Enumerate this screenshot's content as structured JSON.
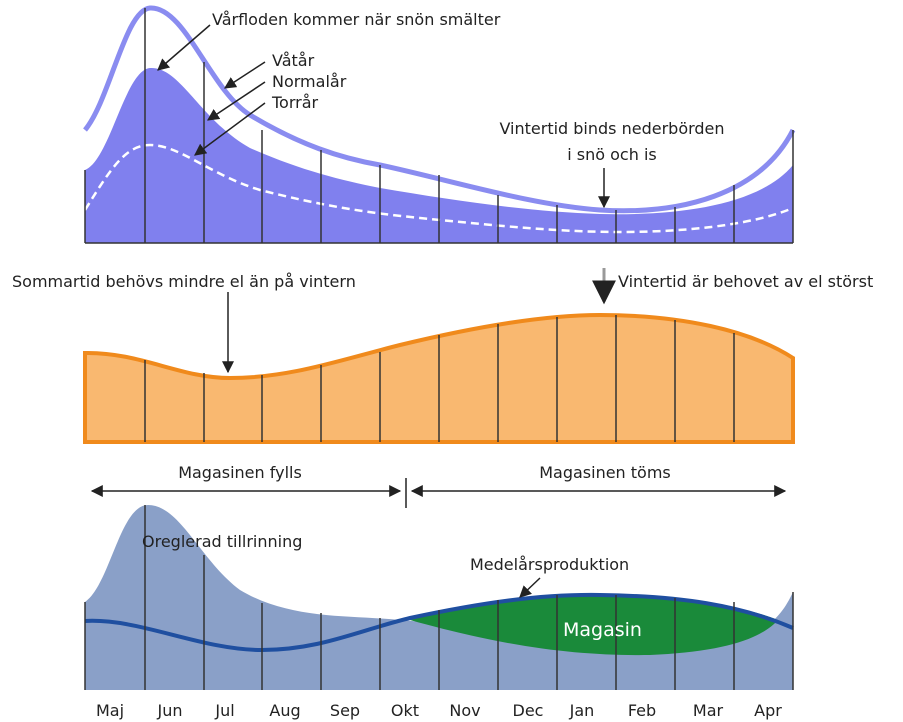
{
  "annotations": {
    "spring_flood": "Vårfloden kommer när snön smälter",
    "wet_year": "Våtår",
    "normal_year": "Normalår",
    "dry_year": "Torrår",
    "winter_snow_1": "Vintertid binds nederbörden",
    "winter_snow_2": "i snö och is",
    "summer_demand": "Sommartid behövs mindre el än på vintern",
    "winter_demand": "Vintertid är behovet av el störst",
    "filling": "Magasinen fylls",
    "emptying": "Magasinen töms",
    "unregulated": "Oreglerad tillrinning",
    "production": "Medelårsproduktion",
    "reservoir": "Magasin"
  },
  "months": [
    "Maj",
    "Jun",
    "Jul",
    "Aug",
    "Sep",
    "Okt",
    "Nov",
    "Dec",
    "Jan",
    "Feb",
    "Mar",
    "Apr"
  ]
}
